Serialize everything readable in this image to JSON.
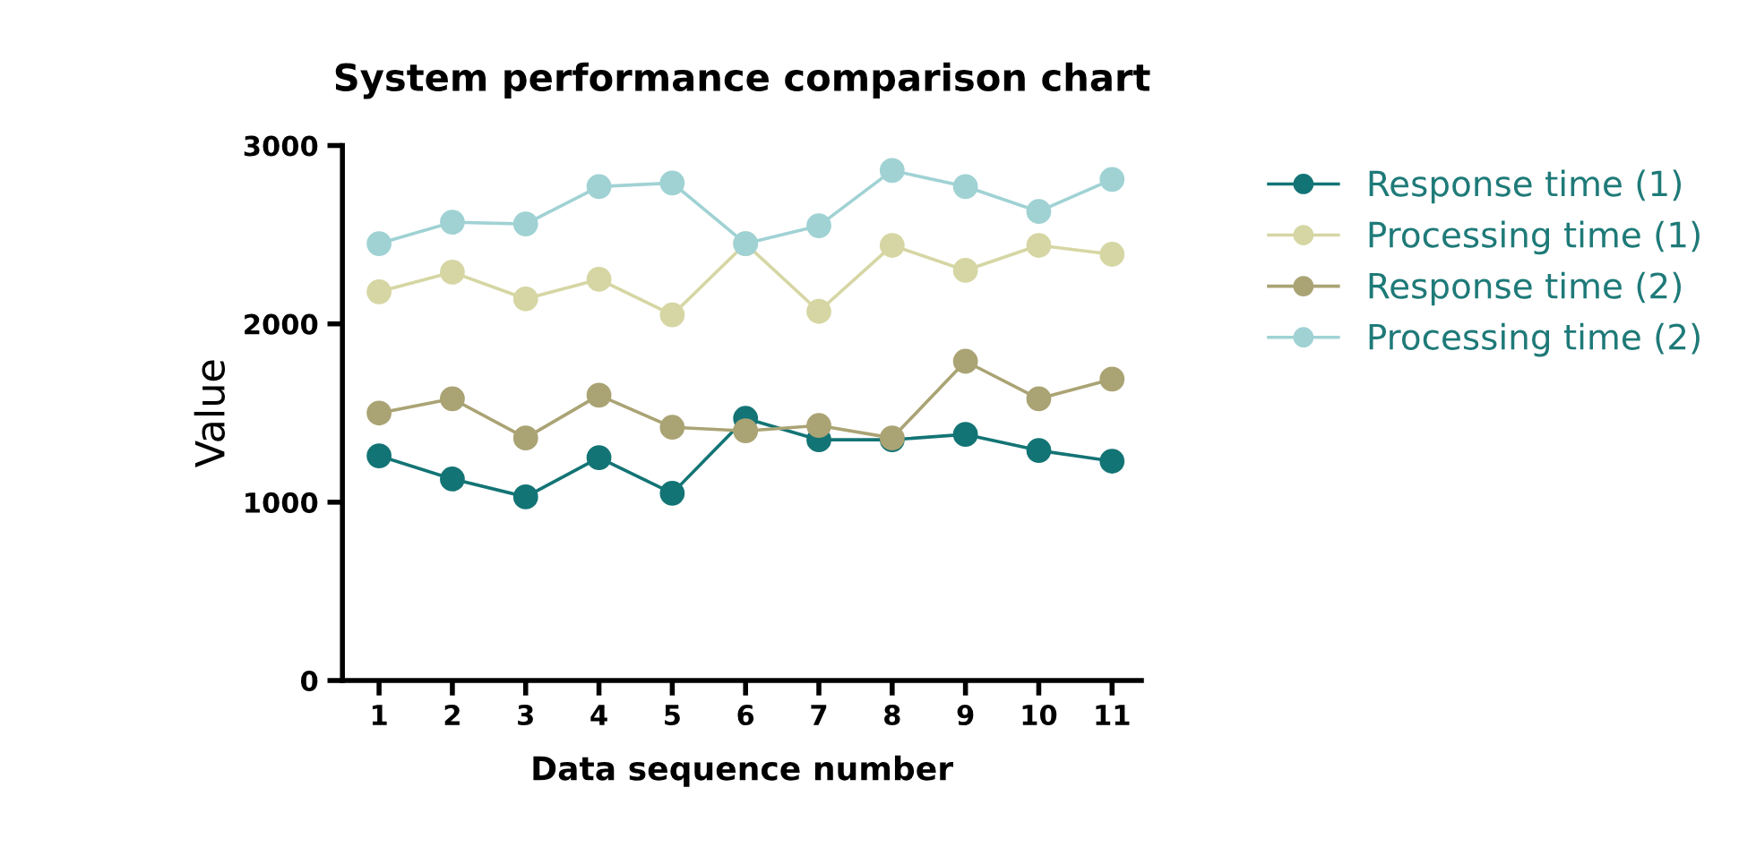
{
  "chart_data": {
    "type": "line",
    "title": "System performance comparison chart",
    "xlabel": "Data sequence number",
    "ylabel": "Value",
    "categories": [
      "1",
      "2",
      "3",
      "4",
      "5",
      "6",
      "7",
      "8",
      "9",
      "10",
      "11"
    ],
    "ylim": [
      0,
      3000
    ],
    "yticks": [
      0,
      1000,
      2000,
      3000
    ],
    "marker": "circle",
    "legend": "right",
    "grid": false,
    "series": [
      {
        "name": "Response time (1)",
        "color": "#137475",
        "values": [
          1260,
          1130,
          1030,
          1250,
          1050,
          1470,
          1350,
          1350,
          1380,
          1290,
          1230
        ]
      },
      {
        "name": "Processing time (1)",
        "color": "#d6d6a4",
        "values": [
          2180,
          2290,
          2140,
          2250,
          2050,
          2450,
          2070,
          2440,
          2300,
          2440,
          2390
        ]
      },
      {
        "name": "Response time (2)",
        "color": "#aaa374",
        "values": [
          1500,
          1580,
          1360,
          1600,
          1420,
          1400,
          1430,
          1360,
          1790,
          1580,
          1690
        ]
      },
      {
        "name": "Processing time (2)",
        "color": "#a0d2d4",
        "values": [
          2450,
          2570,
          2560,
          2770,
          2790,
          2450,
          2550,
          2860,
          2770,
          2630,
          2810
        ]
      }
    ]
  }
}
